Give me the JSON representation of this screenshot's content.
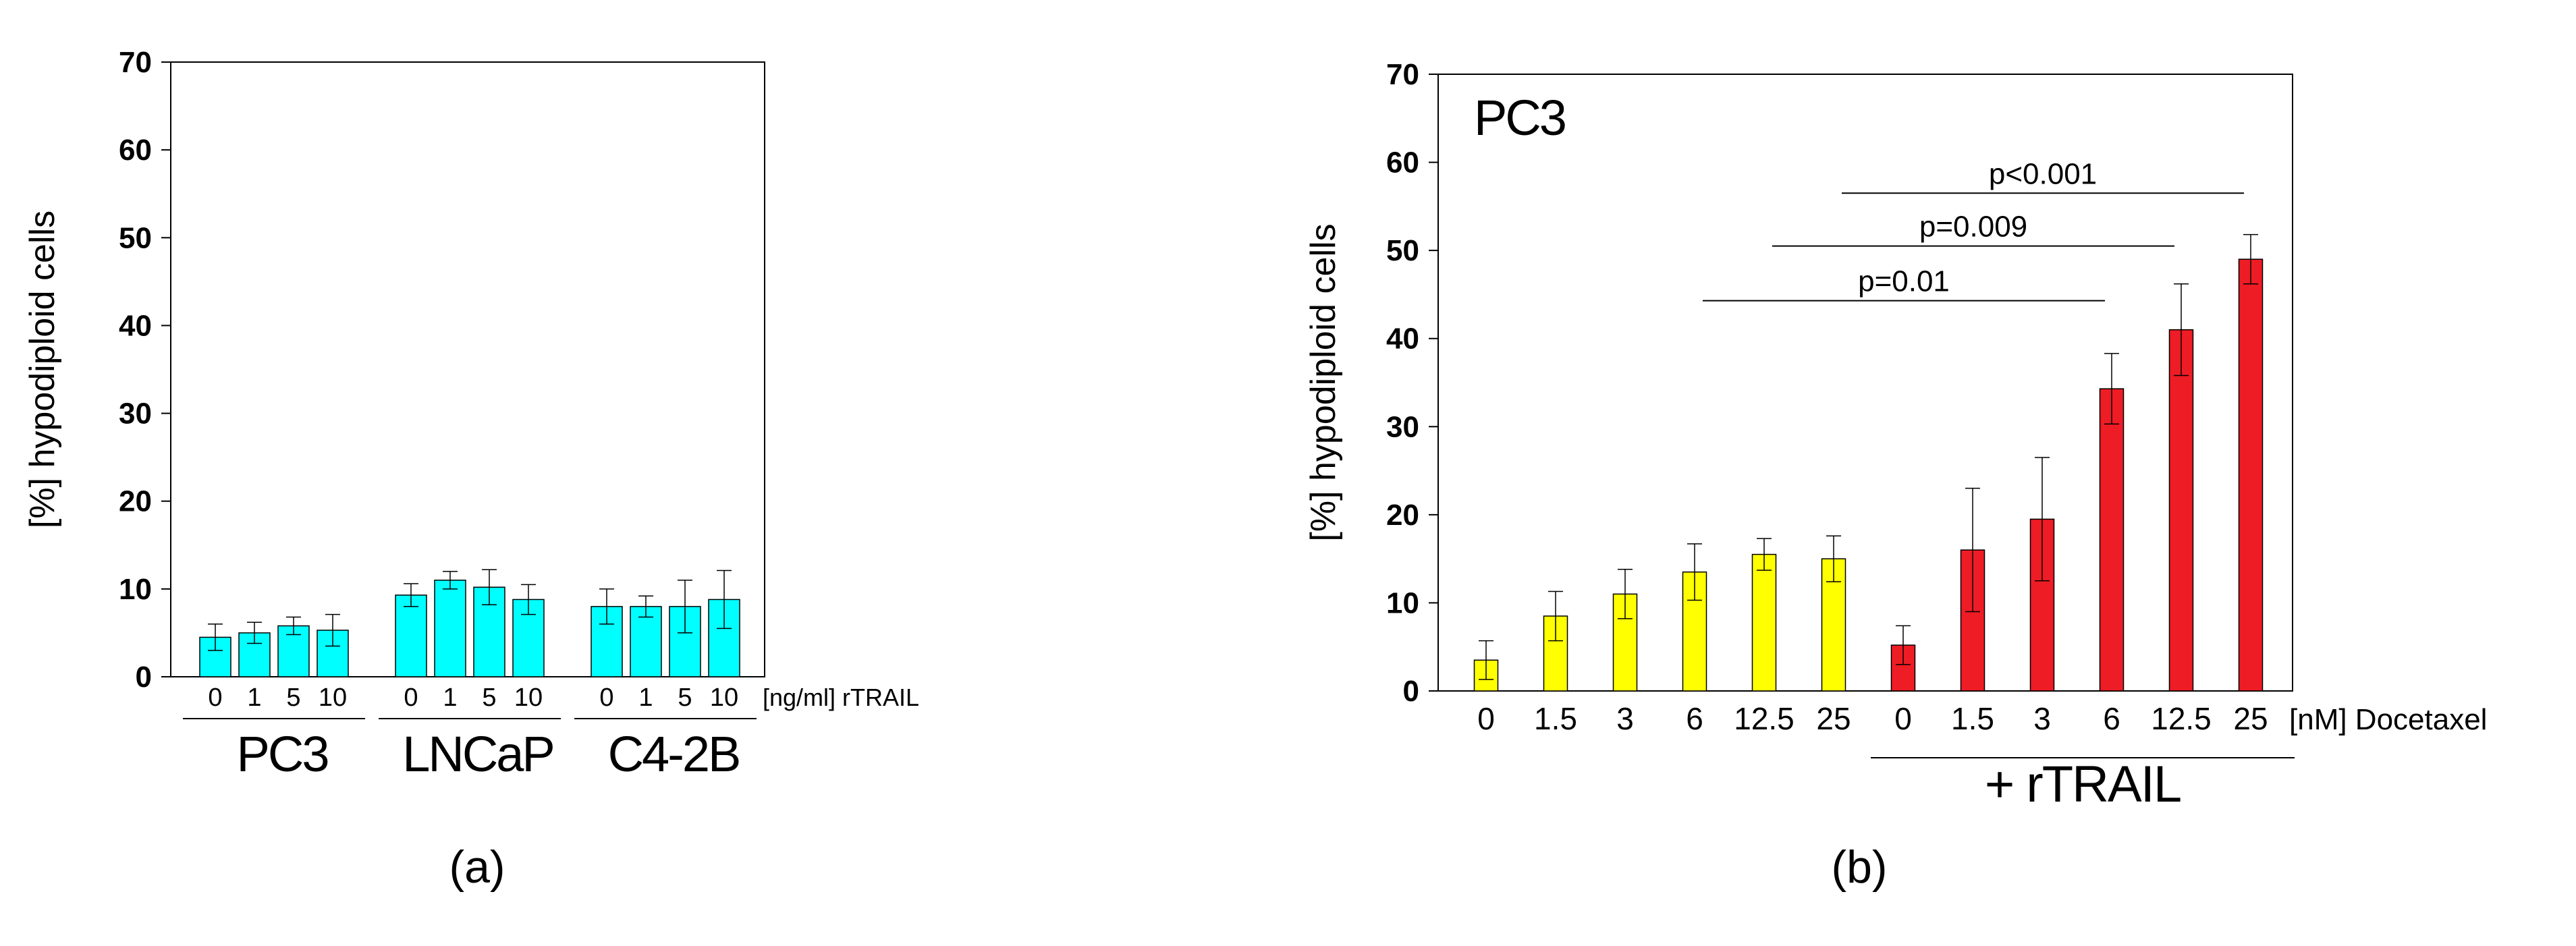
{
  "chart_data": [
    {
      "type": "bar",
      "panel_label": "(a)",
      "ylabel": "[%] hypodiploid cells",
      "ylim": [
        0,
        70
      ],
      "yticks": [
        0,
        10,
        20,
        30,
        40,
        50,
        60,
        70
      ],
      "x_unit_label": "[ng/ml] rTRAIL",
      "groups": [
        {
          "name": "PC3",
          "categories": [
            "0",
            "1",
            "5",
            "10"
          ],
          "values": [
            4.5,
            5.0,
            5.8,
            5.3
          ],
          "errors": [
            1.5,
            1.2,
            1.0,
            1.8
          ]
        },
        {
          "name": "LNCaP",
          "categories": [
            "0",
            "1",
            "5",
            "10"
          ],
          "values": [
            9.3,
            11.0,
            10.2,
            8.8
          ],
          "errors": [
            1.3,
            1.0,
            2.0,
            1.7
          ]
        },
        {
          "name": "C4-2B",
          "categories": [
            "0",
            "1",
            "5",
            "10"
          ],
          "values": [
            8.0,
            8.0,
            8.0,
            8.8
          ],
          "errors": [
            2.0,
            1.2,
            3.0,
            3.3
          ]
        }
      ],
      "bar_color": "#00FFFF",
      "grid": false,
      "legend": "none"
    },
    {
      "type": "bar",
      "panel_label": "(b)",
      "inset_label": "PC3",
      "ylabel": "[%] hypodiploid cells",
      "ylim": [
        0,
        70
      ],
      "yticks": [
        0,
        10,
        20,
        30,
        40,
        50,
        60,
        70
      ],
      "x_unit_label": "[nM]  Docetaxel",
      "categories": [
        "0",
        "1.5",
        "3",
        "6",
        "12.5",
        "25",
        "0",
        "1.5",
        "3",
        "6",
        "12.5",
        "25"
      ],
      "values": [
        3.5,
        8.5,
        11.0,
        13.5,
        15.5,
        15.0,
        5.2,
        16.0,
        19.5,
        34.3,
        41.0,
        49.0
      ],
      "errors": [
        2.2,
        2.8,
        2.8,
        3.2,
        1.8,
        2.6,
        2.2,
        7.0,
        7.0,
        4.0,
        5.2,
        2.8
      ],
      "colors": [
        "#FFFF00",
        "#FFFF00",
        "#FFFF00",
        "#FFFF00",
        "#FFFF00",
        "#FFFF00",
        "#EE1C25",
        "#EE1C25",
        "#EE1C25",
        "#EE1C25",
        "#EE1C25",
        "#EE1C25"
      ],
      "bracket_label": "+ rTRAIL",
      "bracket_from": 6,
      "bracket_to": 11,
      "significance": [
        {
          "label": "p<0.001",
          "from": 5,
          "to": 11,
          "y": 56.5
        },
        {
          "label": "p=0.009",
          "from": 4,
          "to": 10,
          "y": 50.5
        },
        {
          "label": "p=0.01",
          "from": 3,
          "to": 9,
          "y": 44.3
        }
      ],
      "grid": false,
      "legend": "none"
    }
  ]
}
